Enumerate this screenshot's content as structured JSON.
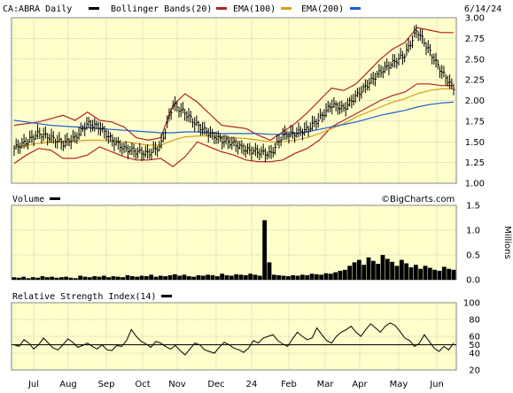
{
  "header": {
    "symbol_label": "CA:ABRA Daily",
    "bollinger_label": "Bollinger Bands(20)",
    "ema100_label": "EMA(100)",
    "ema200_label": "EMA(200)",
    "date_label": "6/14/24"
  },
  "panels": {
    "volume_title": "Volume",
    "volume_unit": "Millions",
    "rsi_title": "Relative Strength Index(14)",
    "watermark": "©BigCharts.com"
  },
  "colors": {
    "background": "#ffffcc",
    "price": "#000000",
    "bollinger": "#b22222",
    "ema100": "#d4a017",
    "ema200": "#1e5fd0",
    "grid": "#9a9a9a",
    "frame": "#808080"
  },
  "chart_data": [
    {
      "type": "line",
      "title": "CA:ABRA Daily",
      "y_ticks": [
        "3.00",
        "2.75",
        "2.50",
        "2.25",
        "2.00",
        "1.75",
        "1.50",
        "1.25",
        "1.00"
      ],
      "ylim": [
        1.0,
        3.0
      ],
      "x_ticks": [
        "Jul",
        "Aug",
        "Sep",
        "Oct",
        "Nov",
        "Dec",
        "24",
        "Feb",
        "Mar",
        "Apr",
        "May",
        "Jun"
      ],
      "grid": true,
      "series": [
        {
          "name": "Price (close)",
          "values": [
            1.42,
            1.5,
            1.6,
            1.55,
            1.48,
            1.55,
            1.72,
            1.68,
            1.52,
            1.42,
            1.38,
            1.36,
            1.45,
            1.95,
            1.85,
            1.7,
            1.6,
            1.52,
            1.48,
            1.4,
            1.38,
            1.35,
            1.58,
            1.6,
            1.65,
            1.78,
            1.95,
            1.9,
            2.05,
            2.2,
            2.35,
            2.45,
            2.55,
            2.85,
            2.6,
            2.35,
            2.15
          ]
        },
        {
          "name": "Bollinger Bands(20)",
          "values": [
            1.7,
            1.72,
            1.74,
            1.78,
            1.82,
            1.76,
            1.86,
            1.76,
            1.74,
            1.68,
            1.55,
            1.52,
            1.55,
            1.94,
            2.08,
            1.98,
            1.84,
            1.7,
            1.68,
            1.66,
            1.58,
            1.52,
            1.62,
            1.72,
            1.85,
            2.0,
            2.15,
            2.12,
            2.2,
            2.35,
            2.5,
            2.62,
            2.7,
            2.88,
            2.85,
            2.82,
            2.82
          ]
        },
        {
          "name": "Bollinger Bands(20)",
          "values": [
            1.24,
            1.34,
            1.42,
            1.4,
            1.3,
            1.3,
            1.34,
            1.44,
            1.38,
            1.32,
            1.28,
            1.28,
            1.3,
            1.2,
            1.32,
            1.5,
            1.44,
            1.38,
            1.34,
            1.28,
            1.26,
            1.26,
            1.28,
            1.36,
            1.42,
            1.52,
            1.68,
            1.76,
            1.84,
            1.92,
            2.0,
            2.06,
            2.1,
            2.2,
            2.2,
            2.18,
            2.18
          ]
        },
        {
          "name": "EMA(100)",
          "values": [
            1.44,
            1.46,
            1.48,
            1.5,
            1.51,
            1.51,
            1.52,
            1.52,
            1.51,
            1.5,
            1.48,
            1.46,
            1.46,
            1.52,
            1.56,
            1.57,
            1.57,
            1.56,
            1.55,
            1.54,
            1.52,
            1.5,
            1.5,
            1.52,
            1.55,
            1.6,
            1.66,
            1.72,
            1.8,
            1.86,
            1.92,
            1.98,
            2.02,
            2.08,
            2.12,
            2.14,
            2.14
          ]
        },
        {
          "name": "EMA(200)",
          "values": [
            1.76,
            1.74,
            1.72,
            1.7,
            1.69,
            1.68,
            1.67,
            1.66,
            1.65,
            1.64,
            1.63,
            1.62,
            1.61,
            1.61,
            1.62,
            1.62,
            1.61,
            1.6,
            1.6,
            1.6,
            1.6,
            1.59,
            1.59,
            1.6,
            1.62,
            1.65,
            1.68,
            1.71,
            1.74,
            1.78,
            1.82,
            1.85,
            1.88,
            1.92,
            1.95,
            1.97,
            1.98
          ]
        }
      ]
    },
    {
      "type": "bar",
      "title": "Volume",
      "ylabel": "Millions",
      "y_ticks": [
        "1.5",
        "1.0",
        "0.5",
        "0.0"
      ],
      "ylim": [
        0,
        1.5
      ],
      "grid": true,
      "series": [
        {
          "name": "Volume",
          "values": [
            0.05,
            0.04,
            0.06,
            0.03,
            0.05,
            0.04,
            0.07,
            0.05,
            0.06,
            0.04,
            0.05,
            0.06,
            0.04,
            0.03,
            0.08,
            0.06,
            0.05,
            0.07,
            0.06,
            0.08,
            0.05,
            0.07,
            0.06,
            0.05,
            0.09,
            0.07,
            0.06,
            0.08,
            0.07,
            0.1,
            0.06,
            0.08,
            0.07,
            0.09,
            0.11,
            0.08,
            0.1,
            0.07,
            0.06,
            0.09,
            0.08,
            0.1,
            0.09,
            0.07,
            0.12,
            0.09,
            0.08,
            0.11,
            0.1,
            0.09,
            0.12,
            0.1,
            0.08,
            1.2,
            0.35,
            0.1,
            0.09,
            0.08,
            0.07,
            0.09,
            0.08,
            0.1,
            0.09,
            0.12,
            0.11,
            0.1,
            0.13,
            0.12,
            0.15,
            0.18,
            0.2,
            0.28,
            0.35,
            0.4,
            0.3,
            0.45,
            0.38,
            0.32,
            0.5,
            0.42,
            0.36,
            0.28,
            0.4,
            0.33,
            0.25,
            0.3,
            0.22,
            0.28,
            0.24,
            0.2,
            0.18,
            0.26,
            0.22,
            0.2
          ]
        }
      ]
    },
    {
      "type": "line",
      "title": "Relative Strength Index(14)",
      "y_ticks": [
        "100",
        "80",
        "60",
        "50",
        "40",
        "20"
      ],
      "ylim": [
        20,
        100
      ],
      "reference_line": 50,
      "grid": true,
      "series": [
        {
          "name": "RSI(14)",
          "values": [
            50,
            48,
            56,
            52,
            45,
            50,
            58,
            52,
            46,
            44,
            50,
            57,
            53,
            47,
            49,
            52,
            48,
            45,
            50,
            44,
            43,
            49,
            48,
            55,
            68,
            60,
            54,
            51,
            47,
            54,
            52,
            48,
            45,
            49,
            43,
            38,
            45,
            52,
            50,
            44,
            42,
            40,
            47,
            53,
            50,
            46,
            44,
            41,
            46,
            55,
            52,
            58,
            60,
            62,
            55,
            51,
            48,
            57,
            65,
            60,
            56,
            58,
            70,
            62,
            55,
            52,
            60,
            65,
            68,
            72,
            65,
            60,
            68,
            75,
            70,
            65,
            72,
            76,
            73,
            66,
            58,
            55,
            48,
            52,
            62,
            54,
            46,
            42,
            48,
            44,
            52
          ]
        }
      ]
    }
  ]
}
